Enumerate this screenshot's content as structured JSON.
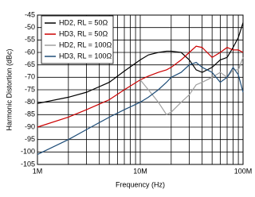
{
  "chart_data": {
    "type": "line",
    "x_label": "Frequency (Hz)",
    "y_label": "Harmonic Distortion (dBc)",
    "xscale": "log",
    "grid": true,
    "legend": "upper-left",
    "x": [
      1000000,
      2000000,
      3000000,
      5000000,
      7000000,
      10000000,
      12000000,
      15000000,
      18000000,
      20000000,
      25000000,
      30000000,
      35000000,
      40000000,
      50000000,
      60000000,
      70000000,
      80000000,
      90000000,
      100000000
    ],
    "series": [
      {
        "name": "HD2, RL = 50Ω",
        "color": "#000000",
        "values": [
          -80.5,
          -78,
          -76,
          -72,
          -67.5,
          -63,
          -61,
          -60,
          -59.5,
          -59.5,
          -60,
          -63,
          -67,
          -68,
          -66,
          -63,
          -62,
          -58,
          -54,
          -48
        ]
      },
      {
        "name": "HD3, RL = 50Ω",
        "color": "#cc0000",
        "values": [
          -90,
          -86,
          -83,
          -79,
          -75,
          -71,
          -69.5,
          -68,
          -67,
          -66,
          -63,
          -60,
          -57.5,
          -58,
          -62,
          -60,
          -58,
          -59,
          -59,
          -60
        ]
      },
      {
        "name": "HD2, RL = 100Ω",
        "color": "#a0a0a0",
        "values": [
          null,
          null,
          null,
          null,
          null,
          -71,
          -75,
          -80,
          -85,
          -84,
          -80,
          -77,
          -73,
          -72,
          -70,
          -68,
          -70,
          -67,
          -67,
          -62
        ]
      },
      {
        "name": "HD3, RL = 100Ω",
        "color": "#1f4e79",
        "values": [
          -101,
          -95,
          -91,
          -86,
          -83,
          -80,
          -78,
          -75,
          -72,
          -70,
          -68,
          -65,
          -64,
          -66,
          -68,
          -72,
          -70,
          -66,
          -69,
          -76
        ]
      }
    ],
    "xlim": [
      1000000,
      100000000
    ],
    "xticks": [
      {
        "value": 1000000,
        "label": "1M"
      },
      {
        "value": 10000000,
        "label": "10M"
      },
      {
        "value": 100000000,
        "label": "100M"
      }
    ],
    "ylim": [
      -105,
      -45
    ],
    "yticks": [
      -105,
      -100,
      -95,
      -90,
      -85,
      -80,
      -75,
      -70,
      -65,
      -60,
      -55,
      -50,
      -45
    ]
  }
}
